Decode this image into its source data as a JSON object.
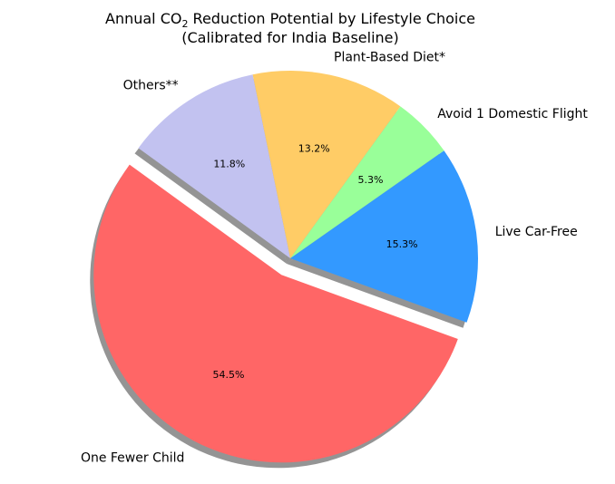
{
  "chart_data": {
    "type": "pie",
    "title": {
      "line1_prefix": "Annual CO",
      "line1_subscript": "2",
      "line1_suffix": " Reduction Potential by Lifestyle Choice",
      "line2": "(Calibrated for India Baseline)"
    },
    "slices": [
      {
        "label": "One Fewer Child",
        "value": 54.5,
        "pct_label": "54.5%",
        "color": "#ff6666",
        "exploded": true
      },
      {
        "label": "Live Car-Free",
        "value": 15.3,
        "pct_label": "15.3%",
        "color": "#3399ff",
        "exploded": false
      },
      {
        "label": "Avoid 1 Domestic Flight",
        "value": 5.3,
        "pct_label": "5.3%",
        "color": "#99ff99",
        "exploded": false
      },
      {
        "label": "Plant-Based Diet*",
        "value": 13.2,
        "pct_label": "13.2%",
        "color": "#ffcc66",
        "exploded": false
      },
      {
        "label": "Others**",
        "value": 11.8,
        "pct_label": "11.8%",
        "color": "#c2c2f0",
        "exploded": false
      }
    ],
    "shadow": true,
    "legend": "none"
  }
}
